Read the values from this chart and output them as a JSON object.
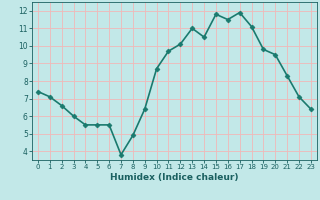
{
  "x": [
    0,
    1,
    2,
    3,
    4,
    5,
    6,
    7,
    8,
    9,
    10,
    11,
    12,
    13,
    14,
    15,
    16,
    17,
    18,
    19,
    20,
    21,
    22,
    23
  ],
  "y": [
    7.4,
    7.1,
    6.6,
    6.0,
    5.5,
    5.5,
    5.5,
    3.8,
    4.9,
    6.4,
    8.7,
    9.7,
    10.1,
    11.0,
    10.5,
    11.8,
    11.5,
    11.9,
    11.1,
    9.8,
    9.5,
    8.3,
    7.1,
    6.4
  ],
  "line_color": "#1a7a6e",
  "marker": "D",
  "markersize": 2.5,
  "bg_color": "#c2e8e8",
  "grid_color": "#f0b8b8",
  "xlabel": "Humidex (Indice chaleur)",
  "ylim": [
    3.5,
    12.5
  ],
  "xlim": [
    -0.5,
    23.5
  ],
  "yticks": [
    4,
    5,
    6,
    7,
    8,
    9,
    10,
    11,
    12
  ],
  "xticks": [
    0,
    1,
    2,
    3,
    4,
    5,
    6,
    7,
    8,
    9,
    10,
    11,
    12,
    13,
    14,
    15,
    16,
    17,
    18,
    19,
    20,
    21,
    22,
    23
  ],
  "font_color": "#1a6060",
  "linewidth": 1.2
}
